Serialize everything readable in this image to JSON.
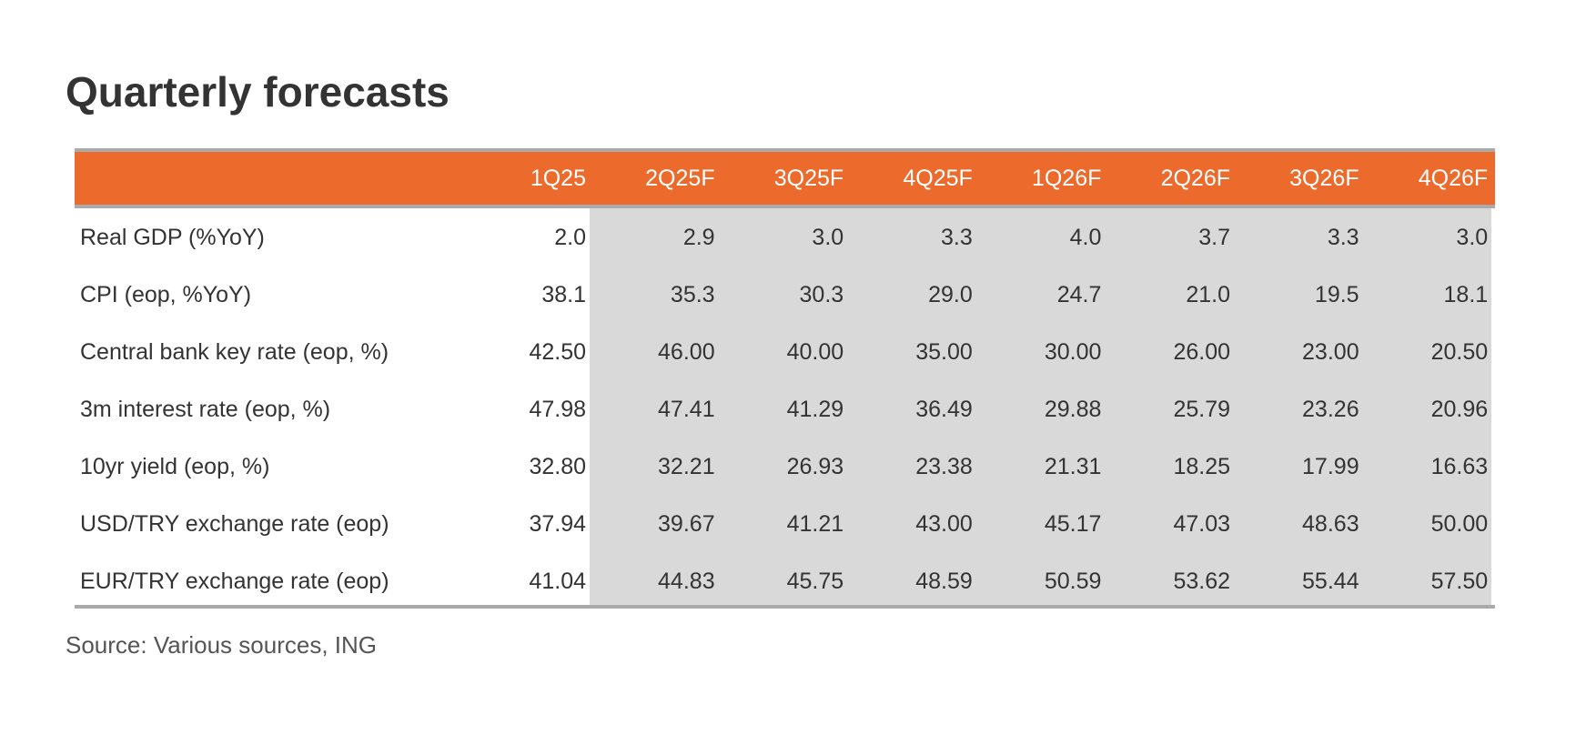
{
  "header": {
    "title": "Quarterly forecasts"
  },
  "table": {
    "columns": [
      "1Q25",
      "2Q25F",
      "3Q25F",
      "4Q25F",
      "1Q26F",
      "2Q26F",
      "3Q26F",
      "4Q26F"
    ],
    "rows": [
      {
        "label": "Real GDP (%YoY)",
        "values": [
          "2.0",
          "2.9",
          "3.0",
          "3.3",
          "4.0",
          "3.7",
          "3.3",
          "3.0"
        ]
      },
      {
        "label": "CPI (eop, %YoY)",
        "values": [
          "38.1",
          "35.3",
          "30.3",
          "29.0",
          "24.7",
          "21.0",
          "19.5",
          "18.1"
        ]
      },
      {
        "label": "Central bank key rate (eop, %)",
        "values": [
          "42.50",
          "46.00",
          "40.00",
          "35.00",
          "30.00",
          "26.00",
          "23.00",
          "20.50"
        ]
      },
      {
        "label": "3m interest rate (eop, %)",
        "values": [
          "47.98",
          "47.41",
          "41.29",
          "36.49",
          "29.88",
          "25.79",
          "23.26",
          "20.96"
        ]
      },
      {
        "label": "10yr yield (eop, %)",
        "values": [
          "32.80",
          "32.21",
          "26.93",
          "23.38",
          "21.31",
          "18.25",
          "17.99",
          "16.63"
        ]
      },
      {
        "label": "USD/TRY exchange rate (eop)",
        "values": [
          "37.94",
          "39.67",
          "41.21",
          "43.00",
          "45.17",
          "47.03",
          "48.63",
          "50.00"
        ]
      },
      {
        "label": "EUR/TRY exchange rate (eop)",
        "values": [
          "41.04",
          "44.83",
          "45.75",
          "48.59",
          "50.59",
          "53.62",
          "55.44",
          "57.50"
        ]
      }
    ]
  },
  "footer": {
    "source": "Source: Various sources, ING"
  }
}
